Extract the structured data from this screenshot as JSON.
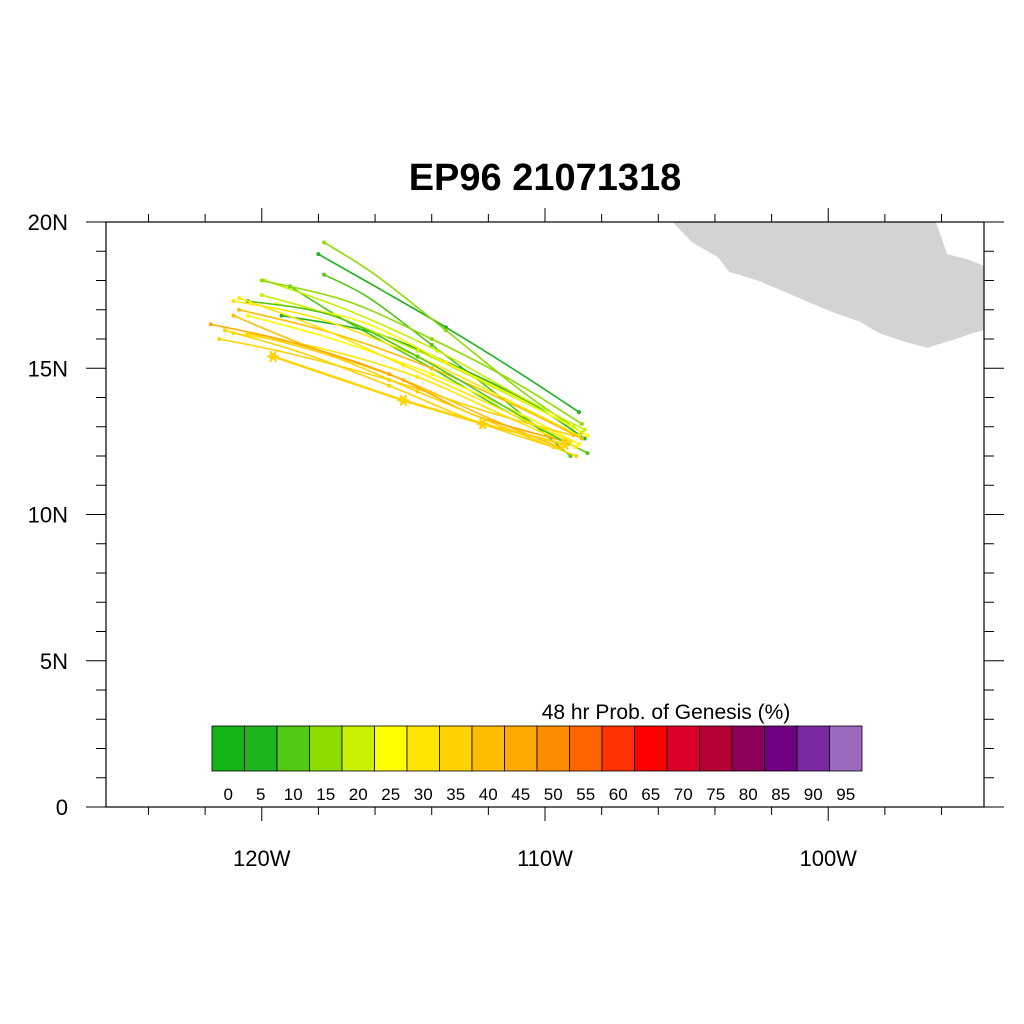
{
  "chart_data": {
    "type": "line",
    "title": "EP96 21071318",
    "xlabel": "",
    "ylabel": "",
    "x_range_lon": [
      -125.5,
      -94.5
    ],
    "y_range_lat": [
      0,
      20
    ],
    "x_ticks": [
      {
        "lon": -120,
        "label": "120W"
      },
      {
        "lon": -110,
        "label": "110W"
      },
      {
        "lon": -100,
        "label": "100W"
      }
    ],
    "y_ticks": [
      {
        "lat": 0,
        "label": "0"
      },
      {
        "lat": 5,
        "label": "5N"
      },
      {
        "lat": 10,
        "label": "10N"
      },
      {
        "lat": 15,
        "label": "15N"
      },
      {
        "lat": 20,
        "label": "20N"
      }
    ],
    "land_color": "#d3d3d3",
    "land_polygon": [
      [
        -100.6,
        20.0
      ],
      [
        -99.9,
        19.3
      ],
      [
        -98.8,
        18.9
      ],
      [
        -98.0,
        18.6
      ],
      [
        -97.5,
        18.0
      ],
      [
        -96.8,
        17.6
      ],
      [
        -95.6,
        17.2
      ],
      [
        -94.5,
        16.8
      ],
      [
        -94.5,
        20.0
      ]
    ],
    "land_polygon_2": [
      [
        -105.5,
        20.0
      ],
      [
        -104.8,
        19.3
      ],
      [
        -103.9,
        18.8
      ],
      [
        -103.5,
        18.3
      ],
      [
        -102.5,
        18.0
      ],
      [
        -101.5,
        17.6
      ],
      [
        -100.8,
        17.3
      ],
      [
        -99.8,
        16.9
      ],
      [
        -98.9,
        16.6
      ],
      [
        -98.2,
        16.2
      ],
      [
        -97.3,
        15.9
      ],
      [
        -96.5,
        15.7
      ],
      [
        -95.5,
        16.0
      ],
      [
        -94.9,
        16.2
      ],
      [
        -94.5,
        16.3
      ],
      [
        -94.5,
        18.5
      ],
      [
        -95.0,
        18.7
      ],
      [
        -95.8,
        18.9
      ],
      [
        -96.2,
        20.0
      ]
    ],
    "legend": {
      "title": "48 hr Prob. of Genesis (%)",
      "labels": [
        "0",
        "5",
        "10",
        "15",
        "20",
        "25",
        "30",
        "35",
        "40",
        "45",
        "50",
        "55",
        "60",
        "65",
        "70",
        "75",
        "80",
        "85",
        "90",
        "95"
      ],
      "colors": [
        "#14b414",
        "#1eb41e",
        "#50c814",
        "#8cdc00",
        "#c8f000",
        "#ffff00",
        "#ffe600",
        "#ffd200",
        "#ffbe00",
        "#ffaa00",
        "#ff8c00",
        "#ff6400",
        "#ff3200",
        "#ff0000",
        "#dc0028",
        "#b40032",
        "#8c005a",
        "#6e0082",
        "#7828a0",
        "#9b69be"
      ]
    },
    "mean_track": {
      "name": "",
      "color": "#ffd200",
      "points": [
        [
          -109.3,
          12.4
        ],
        [
          -112.2,
          13.1
        ],
        [
          -115.0,
          13.9
        ],
        [
          -119.6,
          15.4
        ]
      ]
    },
    "series": [
      {
        "color": "#50c814",
        "points": [
          [
            -108.5,
            12.1
          ],
          [
            -111.5,
            13.6
          ],
          [
            -114.0,
            15.0
          ],
          [
            -117.0,
            16.6
          ],
          [
            -119.0,
            17.8
          ]
        ]
      },
      {
        "color": "#1eb41e",
        "points": [
          [
            -108.8,
            13.5
          ],
          [
            -111.0,
            14.9
          ],
          [
            -113.5,
            16.4
          ],
          [
            -116.0,
            17.8
          ],
          [
            -118.0,
            18.9
          ]
        ]
      },
      {
        "color": "#8cdc00",
        "points": [
          [
            -108.7,
            12.8
          ],
          [
            -110.8,
            14.2
          ],
          [
            -113.5,
            16.3
          ],
          [
            -116.0,
            18.2
          ],
          [
            -117.8,
            19.3
          ]
        ]
      },
      {
        "color": "#50c814",
        "points": [
          [
            -109.1,
            12.0
          ],
          [
            -111.3,
            13.8
          ],
          [
            -114.0,
            15.8
          ],
          [
            -116.2,
            17.4
          ],
          [
            -117.8,
            18.2
          ]
        ]
      },
      {
        "color": "#1eb41e",
        "points": [
          [
            -108.6,
            12.6
          ],
          [
            -110.5,
            13.8
          ],
          [
            -113.0,
            15.0
          ],
          [
            -116.0,
            16.2
          ],
          [
            -119.3,
            16.8
          ]
        ]
      },
      {
        "color": "#c8f000",
        "points": [
          [
            -108.6,
            12.9
          ],
          [
            -111.0,
            14.1
          ],
          [
            -113.8,
            15.6
          ],
          [
            -117.0,
            17.0
          ],
          [
            -119.9,
            18.0
          ]
        ]
      },
      {
        "color": "#ffff00",
        "points": [
          [
            -108.8,
            12.4
          ],
          [
            -111.0,
            13.5
          ],
          [
            -114.0,
            14.8
          ],
          [
            -117.5,
            16.0
          ],
          [
            -120.5,
            16.8
          ]
        ]
      },
      {
        "color": "#ffe600",
        "points": [
          [
            -108.9,
            12.3
          ],
          [
            -111.5,
            13.4
          ],
          [
            -114.5,
            14.7
          ],
          [
            -118.0,
            15.7
          ],
          [
            -121.0,
            16.2
          ]
        ]
      },
      {
        "color": "#ffbe00",
        "points": [
          [
            -109.5,
            12.3
          ],
          [
            -112.0,
            13.3
          ],
          [
            -115.0,
            14.6
          ],
          [
            -118.5,
            15.8
          ],
          [
            -121.0,
            16.8
          ]
        ]
      },
      {
        "color": "#ffd200",
        "points": [
          [
            -109.0,
            12.7
          ],
          [
            -112.0,
            13.5
          ],
          [
            -115.5,
            14.6
          ],
          [
            -119.0,
            15.5
          ],
          [
            -121.5,
            16.0
          ]
        ]
      },
      {
        "color": "#ffaa00",
        "points": [
          [
            -109.3,
            12.5
          ],
          [
            -112.5,
            13.4
          ],
          [
            -115.5,
            14.8
          ],
          [
            -119.0,
            15.9
          ],
          [
            -121.8,
            16.5
          ]
        ]
      },
      {
        "color": "#ffd200",
        "points": [
          [
            -108.9,
            12.0
          ],
          [
            -111.5,
            13.0
          ],
          [
            -114.5,
            14.2
          ],
          [
            -117.5,
            15.4
          ],
          [
            -120.5,
            16.2
          ]
        ]
      },
      {
        "color": "#c8f000",
        "points": [
          [
            -109.0,
            13.0
          ],
          [
            -111.5,
            14.2
          ],
          [
            -114.5,
            15.6
          ],
          [
            -117.5,
            16.8
          ],
          [
            -120.0,
            17.5
          ]
        ]
      },
      {
        "color": "#8cdc00",
        "points": [
          [
            -108.7,
            13.1
          ],
          [
            -111.2,
            14.6
          ],
          [
            -114.0,
            16.0
          ],
          [
            -117.0,
            17.3
          ],
          [
            -120.0,
            18.0
          ]
        ]
      },
      {
        "color": "#ffe600",
        "points": [
          [
            -108.8,
            12.7
          ],
          [
            -111.5,
            14.0
          ],
          [
            -114.5,
            15.4
          ],
          [
            -118.0,
            16.7
          ],
          [
            -121.0,
            17.3
          ]
        ]
      },
      {
        "color": "#ffbe00",
        "points": [
          [
            -108.7,
            12.6
          ],
          [
            -111.0,
            13.7
          ],
          [
            -114.0,
            15.0
          ],
          [
            -117.5,
            16.2
          ],
          [
            -120.8,
            17.0
          ]
        ]
      },
      {
        "color": "#ffff00",
        "points": [
          [
            -108.5,
            12.7
          ],
          [
            -110.8,
            13.9
          ],
          [
            -113.5,
            15.2
          ],
          [
            -116.5,
            16.6
          ],
          [
            -119.5,
            17.2
          ]
        ]
      },
      {
        "color": "#50c814",
        "points": [
          [
            -109.2,
            12.4
          ],
          [
            -111.8,
            13.9
          ],
          [
            -114.5,
            15.4
          ],
          [
            -117.5,
            16.8
          ],
          [
            -120.5,
            17.3
          ]
        ]
      },
      {
        "color": "#ffd200",
        "points": [
          [
            -109.7,
            12.3
          ],
          [
            -112.5,
            13.2
          ],
          [
            -115.5,
            14.4
          ],
          [
            -118.5,
            15.5
          ],
          [
            -121.3,
            16.3
          ]
        ]
      },
      {
        "color": "#ffe600",
        "points": [
          [
            -109.1,
            12.5
          ],
          [
            -112.0,
            13.8
          ],
          [
            -115.0,
            15.1
          ],
          [
            -118.0,
            16.4
          ],
          [
            -120.8,
            17.4
          ]
        ]
      }
    ]
  }
}
